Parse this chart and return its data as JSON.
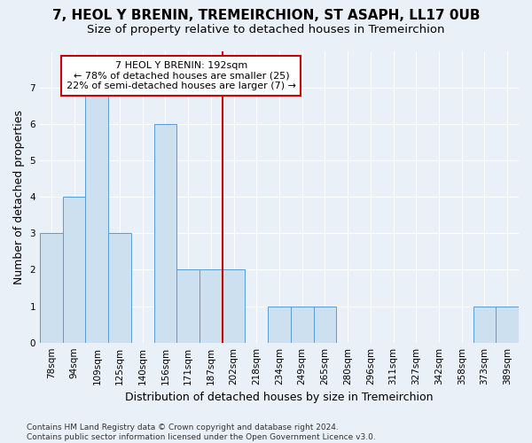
{
  "title": "7, HEOL Y BRENIN, TREMEIRCHION, ST ASAPH, LL17 0UB",
  "subtitle": "Size of property relative to detached houses in Tremeirchion",
  "xlabel": "Distribution of detached houses by size in Tremeirchion",
  "ylabel": "Number of detached properties",
  "categories": [
    "78sqm",
    "94sqm",
    "109sqm",
    "125sqm",
    "140sqm",
    "156sqm",
    "171sqm",
    "187sqm",
    "202sqm",
    "218sqm",
    "234sqm",
    "249sqm",
    "265sqm",
    "280sqm",
    "296sqm",
    "311sqm",
    "327sqm",
    "342sqm",
    "358sqm",
    "373sqm",
    "389sqm"
  ],
  "values": [
    3,
    4,
    7,
    3,
    0,
    6,
    2,
    2,
    2,
    0,
    1,
    1,
    1,
    0,
    0,
    0,
    0,
    0,
    0,
    1,
    1
  ],
  "bar_color": "#cce0f0",
  "bar_edgecolor": "#5b9bd5",
  "background_color": "#eaf0f8",
  "grid_color": "#ffffff",
  "annotation_line1": "7 HEOL Y BRENIN: 192sqm",
  "annotation_line2": "← 78% of detached houses are smaller (25)",
  "annotation_line3": "22% of semi-detached houses are larger (7) →",
  "vline_x": 7.5,
  "vline_color": "#cc0000",
  "annotation_box_edgecolor": "#cc0000",
  "footer_text": "Contains HM Land Registry data © Crown copyright and database right 2024.\nContains public sector information licensed under the Open Government Licence v3.0.",
  "ylim": [
    0,
    8
  ],
  "yticks": [
    0,
    1,
    2,
    3,
    4,
    5,
    6,
    7
  ],
  "title_fontsize": 11,
  "subtitle_fontsize": 9.5,
  "xlabel_fontsize": 9,
  "ylabel_fontsize": 9,
  "tick_fontsize": 7.5,
  "annotation_fontsize": 8,
  "footer_fontsize": 6.5
}
